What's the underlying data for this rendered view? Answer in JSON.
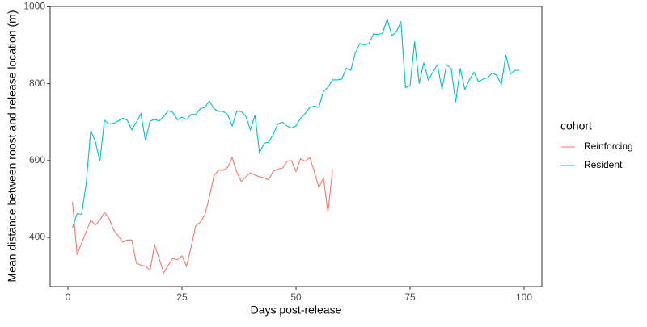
{
  "chart_data": {
    "type": "line",
    "x_label": "Days post-release",
    "y_label": "Mean distance between roost and release location (m)",
    "legend_title": "cohort",
    "legend_position": "right",
    "grid": false,
    "xlim": [
      -3.9,
      103.9
    ],
    "xticks": [
      0,
      25,
      50,
      75,
      100
    ],
    "ylim": [
      272,
      1001
    ],
    "yticks": [
      400,
      600,
      800,
      1000
    ],
    "series": [
      {
        "name": "Reinforcing",
        "color": "#F8766D",
        "x": [
          1,
          2,
          3,
          4,
          5,
          6,
          7,
          8,
          9,
          10,
          11,
          12,
          13,
          14,
          15,
          16,
          17,
          18,
          19,
          20,
          21,
          22,
          23,
          24,
          25,
          26,
          27,
          28,
          29,
          30,
          31,
          32,
          33,
          34,
          35,
          36,
          37,
          38,
          39,
          40,
          41,
          42,
          43,
          44,
          45,
          46,
          47,
          48,
          49,
          50,
          51,
          52,
          53,
          54,
          55,
          56,
          57,
          58
        ],
        "values": [
          493,
          355,
          385,
          415,
          445,
          432,
          445,
          465,
          450,
          420,
          405,
          388,
          393,
          393,
          333,
          328,
          325,
          315,
          380,
          345,
          308,
          328,
          345,
          342,
          352,
          325,
          375,
          430,
          440,
          458,
          505,
          560,
          575,
          575,
          582,
          608,
          570,
          545,
          558,
          568,
          562,
          558,
          555,
          550,
          572,
          578,
          580,
          598,
          600,
          572,
          605,
          598,
          608,
          572,
          530,
          555,
          466,
          575
        ]
      },
      {
        "name": "Resident",
        "color": "#00BFC4",
        "x": [
          1,
          2,
          3,
          4,
          5,
          6,
          7,
          8,
          9,
          10,
          11,
          12,
          13,
          14,
          15,
          16,
          17,
          18,
          19,
          20,
          21,
          22,
          23,
          24,
          25,
          26,
          27,
          28,
          29,
          30,
          31,
          32,
          33,
          34,
          35,
          36,
          37,
          38,
          39,
          40,
          41,
          42,
          43,
          44,
          45,
          46,
          47,
          48,
          49,
          50,
          51,
          52,
          53,
          54,
          55,
          56,
          57,
          58,
          59,
          60,
          61,
          62,
          63,
          64,
          65,
          66,
          67,
          68,
          69,
          70,
          71,
          72,
          73,
          74,
          75,
          76,
          77,
          78,
          79,
          80,
          81,
          82,
          83,
          84,
          85,
          86,
          87,
          88,
          89,
          90,
          91,
          92,
          93,
          94,
          95,
          96,
          97,
          98,
          99
        ],
        "values": [
          425,
          462,
          460,
          540,
          678,
          650,
          598,
          705,
          695,
          697,
          703,
          710,
          705,
          680,
          700,
          722,
          652,
          703,
          707,
          703,
          715,
          730,
          725,
          706,
          713,
          707,
          720,
          720,
          735,
          738,
          755,
          735,
          728,
          728,
          720,
          690,
          728,
          728,
          715,
          680,
          718,
          620,
          645,
          648,
          668,
          695,
          700,
          690,
          685,
          690,
          710,
          722,
          738,
          742,
          738,
          780,
          790,
          810,
          810,
          812,
          840,
          835,
          880,
          905,
          900,
          905,
          930,
          928,
          932,
          968,
          925,
          935,
          962,
          790,
          795,
          910,
          800,
          855,
          810,
          830,
          850,
          785,
          850,
          840,
          752,
          840,
          785,
          810,
          830,
          805,
          812,
          815,
          828,
          822,
          798,
          875,
          825,
          835,
          835
        ]
      }
    ]
  }
}
